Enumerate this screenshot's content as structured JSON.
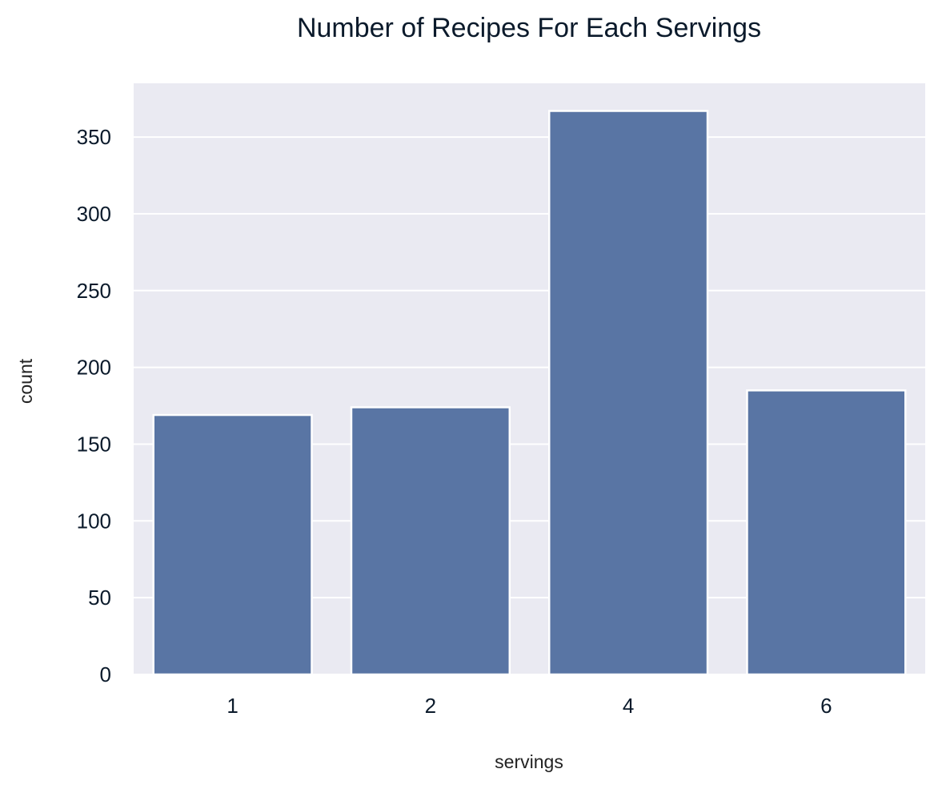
{
  "chart_data": {
    "type": "bar",
    "title": "Number of Recipes For Each Servings",
    "xlabel": "servings",
    "ylabel": "count",
    "categories": [
      "1",
      "2",
      "4",
      "6"
    ],
    "values": [
      169,
      174,
      367,
      185
    ],
    "ylim": [
      0,
      385
    ],
    "yticks": [
      0,
      50,
      100,
      150,
      200,
      250,
      300,
      350
    ],
    "grid": true,
    "legend": "none",
    "colors": {
      "bar": "#5975a4",
      "bar_edge": "#ffffff",
      "plot_background": "#eaeaf2",
      "grid": "#ffffff"
    }
  }
}
